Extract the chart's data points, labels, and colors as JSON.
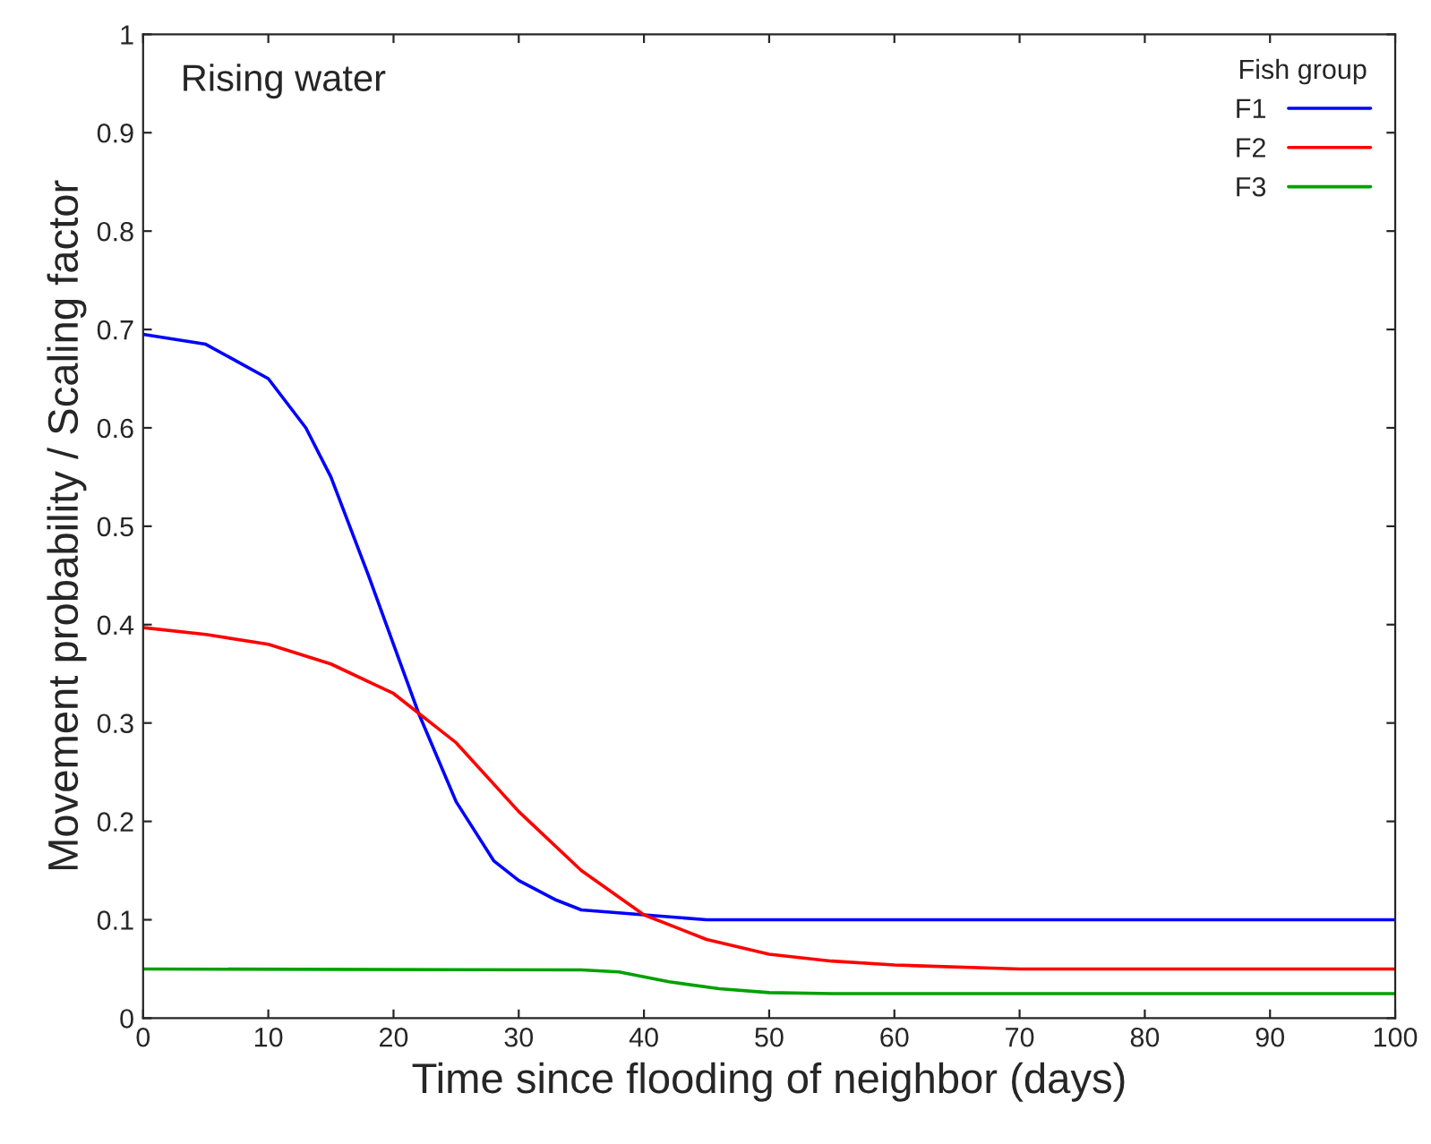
{
  "chart_data": {
    "type": "line",
    "xlabel": "Time since flooding of neighbor (days)",
    "ylabel": "Movement probability / Scaling factor",
    "legend_title": "Fish group",
    "annotations": [
      "Rising water"
    ],
    "xlim": [
      0,
      100
    ],
    "ylim": [
      0,
      1
    ],
    "xticks": [
      0,
      10,
      20,
      30,
      40,
      50,
      60,
      70,
      80,
      90,
      100
    ],
    "yticks": [
      0,
      0.1,
      0.2,
      0.3,
      0.4,
      0.5,
      0.6,
      0.7,
      0.8,
      0.9,
      1
    ],
    "grid": false,
    "legend": "top right",
    "marker": "none",
    "line_style": "solid",
    "series": [
      {
        "name": "F1",
        "color": "#0000ff",
        "x": [
          0,
          5,
          10,
          13,
          15,
          18,
          20,
          22,
          25,
          28,
          30,
          33,
          35,
          40,
          45,
          50,
          60,
          100
        ],
        "values": [
          0.695,
          0.685,
          0.65,
          0.6,
          0.55,
          0.45,
          0.38,
          0.31,
          0.22,
          0.16,
          0.14,
          0.12,
          0.11,
          0.105,
          0.1,
          0.1,
          0.1,
          0.1
        ]
      },
      {
        "name": "F2",
        "color": "#ff0000",
        "x": [
          0,
          5,
          10,
          15,
          20,
          25,
          30,
          35,
          40,
          45,
          50,
          55,
          60,
          70,
          100
        ],
        "values": [
          0.397,
          0.39,
          0.38,
          0.36,
          0.33,
          0.28,
          0.21,
          0.15,
          0.105,
          0.08,
          0.065,
          0.058,
          0.054,
          0.05,
          0.05
        ]
      },
      {
        "name": "F3",
        "color": "#00a000",
        "x": [
          0,
          35,
          38,
          42,
          46,
          50,
          55,
          100
        ],
        "values": [
          0.05,
          0.049,
          0.047,
          0.037,
          0.03,
          0.026,
          0.025,
          0.025
        ]
      }
    ]
  }
}
